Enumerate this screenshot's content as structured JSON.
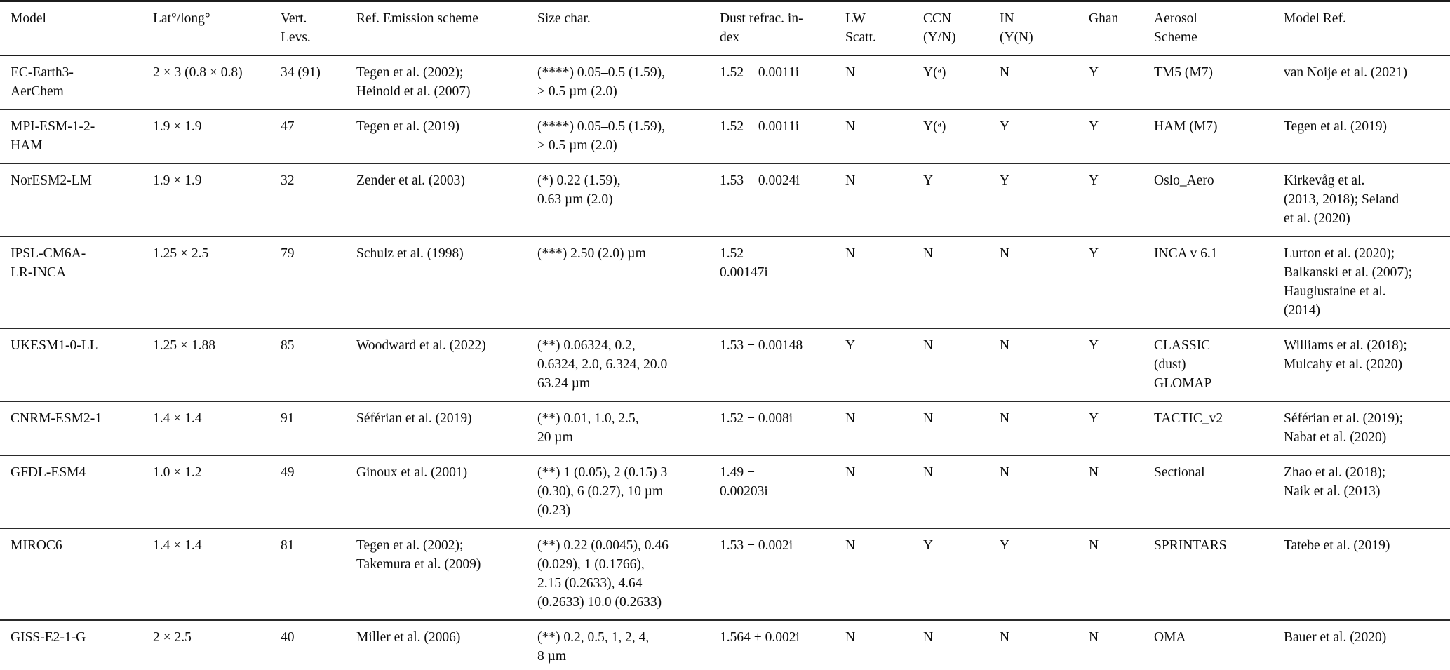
{
  "table": {
    "columns": {
      "model": "Model",
      "lat_long": "Lat°/long°",
      "vert_levs": "Vert.\nLevs.",
      "ref_emission": "Ref. Emission scheme",
      "size_char": "Size char.",
      "dust_refrac": "Dust refrac. in-\ndex",
      "lw_scatt": "LW\nScatt.",
      "ccn": "CCN\n(Y/N)",
      "in": "IN\n(Y(N)",
      "ghan": "Ghan",
      "aerosol_scheme": "Aerosol\nScheme",
      "model_ref": "Model Ref."
    },
    "rows": [
      {
        "model": "EC-Earth3-\nAerChem",
        "lat_long": "2 × 3 (0.8 × 0.8)",
        "vert_levs": "34 (91)",
        "ref_emission": "Tegen et al. (2002);\nHeinold et al. (2007)",
        "size_char": "(****) 0.05–0.5 (1.59),\n> 0.5 µm (2.0)",
        "dust_refrac": "1.52 + 0.0011i",
        "lw_scatt": "N",
        "ccn": "Y(ᵃ)",
        "in": "N",
        "ghan": "Y",
        "aerosol_scheme": "TM5 (M7)",
        "model_ref": "van Noije et al. (2021)"
      },
      {
        "model": "MPI-ESM-1-2-\nHAM",
        "lat_long": "1.9 × 1.9",
        "vert_levs": "47",
        "ref_emission": "Tegen et al. (2019)",
        "size_char": "(****) 0.05–0.5 (1.59),\n> 0.5 µm (2.0)",
        "dust_refrac": "1.52 + 0.0011i",
        "lw_scatt": "N",
        "ccn": "Y(ᵃ)",
        "in": "Y",
        "ghan": "Y",
        "aerosol_scheme": "HAM (M7)",
        "model_ref": "Tegen et al. (2019)"
      },
      {
        "model": "NorESM2-LM",
        "lat_long": "1.9 × 1.9",
        "vert_levs": "32",
        "ref_emission": "Zender et al. (2003)",
        "size_char": "(*) 0.22 (1.59),\n0.63 µm (2.0)",
        "dust_refrac": "1.53 + 0.0024i",
        "lw_scatt": "N",
        "ccn": "Y",
        "in": "Y",
        "ghan": "Y",
        "aerosol_scheme": "Oslo_Aero",
        "model_ref": "Kirkevåg et al.\n(2013, 2018); Seland\net al. (2020)"
      },
      {
        "model": "IPSL-CM6A-\nLR-INCA",
        "lat_long": "1.25 × 2.5",
        "vert_levs": "79",
        "ref_emission": "Schulz et al. (1998)",
        "size_char": "(***) 2.50 (2.0) µm",
        "dust_refrac": "1.52          +\n0.00147i",
        "lw_scatt": "N",
        "ccn": "N",
        "in": "N",
        "ghan": "Y",
        "aerosol_scheme": "INCA v 6.1",
        "model_ref": "Lurton et al. (2020);\nBalkanski et al. (2007);\nHauglustaine et al.\n(2014)"
      },
      {
        "model": "UKESM1-0-LL",
        "lat_long": "1.25 × 1.88",
        "vert_levs": "85",
        "ref_emission": "Woodward et al. (2022)",
        "size_char": "(**) 0.06324, 0.2,\n0.6324, 2.0, 6.324, 20.0\n63.24 µm",
        "dust_refrac": "1.53 + 0.00148",
        "lw_scatt": "Y",
        "ccn": "N",
        "in": "N",
        "ghan": "Y",
        "aerosol_scheme": "CLASSIC\n(dust)\nGLOMAP",
        "model_ref": "Williams et al. (2018);\nMulcahy et al. (2020)"
      },
      {
        "model": "CNRM-ESM2-1",
        "lat_long": "1.4 × 1.4",
        "vert_levs": "91",
        "ref_emission": "Séférian et al. (2019)",
        "size_char": "(**) 0.01, 1.0, 2.5,\n20 µm",
        "dust_refrac": "1.52 + 0.008i",
        "lw_scatt": "N",
        "ccn": "N",
        "in": "N",
        "ghan": "Y",
        "aerosol_scheme": "TACTIC_v2",
        "model_ref": "Séférian et al. (2019);\nNabat et al. (2020)"
      },
      {
        "model": "GFDL-ESM4",
        "lat_long": "1.0 × 1.2",
        "vert_levs": "49",
        "ref_emission": "Ginoux et al. (2001)",
        "size_char": "(**) 1 (0.05), 2 (0.15) 3\n(0.30), 6 (0.27), 10 µm\n(0.23)",
        "dust_refrac": "1.49          +\n0.00203i",
        "lw_scatt": "N",
        "ccn": "N",
        "in": "N",
        "ghan": "N",
        "aerosol_scheme": "Sectional",
        "model_ref": "Zhao et al. (2018);\nNaik et al. (2013)"
      },
      {
        "model": "MIROC6",
        "lat_long": "1.4 × 1.4",
        "vert_levs": "81",
        "ref_emission": "Tegen et al. (2002);\nTakemura et al. (2009)",
        "size_char": "(**) 0.22 (0.0045), 0.46\n(0.029), 1 (0.1766),\n2.15 (0.2633), 4.64\n(0.2633) 10.0 (0.2633)",
        "dust_refrac": "1.53 + 0.002i",
        "lw_scatt": "N",
        "ccn": "Y",
        "in": "Y",
        "ghan": "N",
        "aerosol_scheme": "SPRINTARS",
        "model_ref": "Tatebe et al. (2019)"
      },
      {
        "model": "GISS-E2-1-G",
        "lat_long": "2 × 2.5",
        "vert_levs": "40",
        "ref_emission": "Miller et al. (2006)",
        "size_char": "(**) 0.2, 0.5, 1, 2, 4,\n8 µm",
        "dust_refrac": "1.564 + 0.002i",
        "lw_scatt": "N",
        "ccn": "N",
        "in": "N",
        "ghan": "N",
        "aerosol_scheme": "OMA",
        "model_ref": "Bauer et al. (2020)"
      }
    ]
  }
}
